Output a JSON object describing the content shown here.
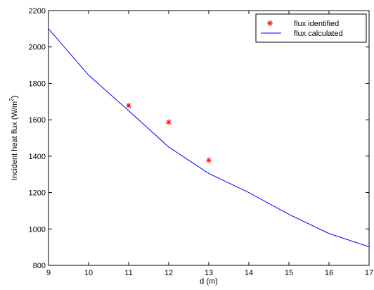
{
  "chart_data": {
    "type": "line",
    "title": "",
    "xlabel": "d (m)",
    "ylabel_main": "Incident heat flux (W/m",
    "ylabel_sup": "2",
    "ylabel_close": ")",
    "xlim": [
      9,
      17
    ],
    "ylim": [
      800,
      2200
    ],
    "x_ticks": [
      9,
      10,
      11,
      12,
      13,
      14,
      15,
      16,
      17
    ],
    "y_ticks": [
      800,
      1000,
      1200,
      1400,
      1600,
      1800,
      2000,
      2200
    ],
    "grid": false,
    "legend_position": "top-right",
    "series": [
      {
        "name": "flux identified",
        "style": "marker-asterisk",
        "color": "#ff0000",
        "x": [
          11,
          12,
          13
        ],
        "y": [
          1678,
          1587,
          1378
        ]
      },
      {
        "name": "flux calculated",
        "style": "line",
        "color": "#0000ff",
        "x": [
          9,
          10,
          11,
          12,
          13,
          14,
          15,
          16,
          17
        ],
        "y": [
          2100,
          1845,
          1650,
          1450,
          1305,
          1200,
          1080,
          975,
          902
        ]
      }
    ]
  }
}
